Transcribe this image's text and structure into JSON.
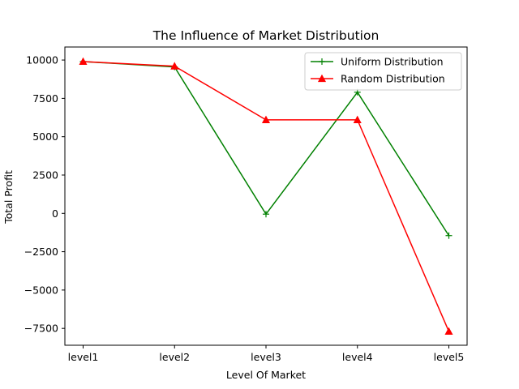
{
  "chart_data": {
    "type": "line",
    "title": "The Influence of Market Distribution",
    "xlabel": "Level Of Market",
    "ylabel": "Total Profit",
    "categories": [
      "level1",
      "level2",
      "level3",
      "level4",
      "level5"
    ],
    "ylim": [
      -8600,
      10850
    ],
    "yticks": [
      -7500,
      -5000,
      -2500,
      0,
      2500,
      5000,
      7500,
      10000
    ],
    "yticklabels": [
      "−7500",
      "−5000",
      "−2500",
      "0",
      "2500",
      "5000",
      "7500",
      "10000"
    ],
    "grid": false,
    "legend_position": "top-right",
    "series": [
      {
        "name": "Uniform Distribution",
        "values": [
          9900,
          9550,
          -50,
          7900,
          -1450
        ],
        "color": "#008000",
        "marker": "plus"
      },
      {
        "name": "Random Distribution",
        "values": [
          9900,
          9600,
          6100,
          6100,
          -7700
        ],
        "color": "#ff0000",
        "marker": "triangle"
      }
    ]
  }
}
